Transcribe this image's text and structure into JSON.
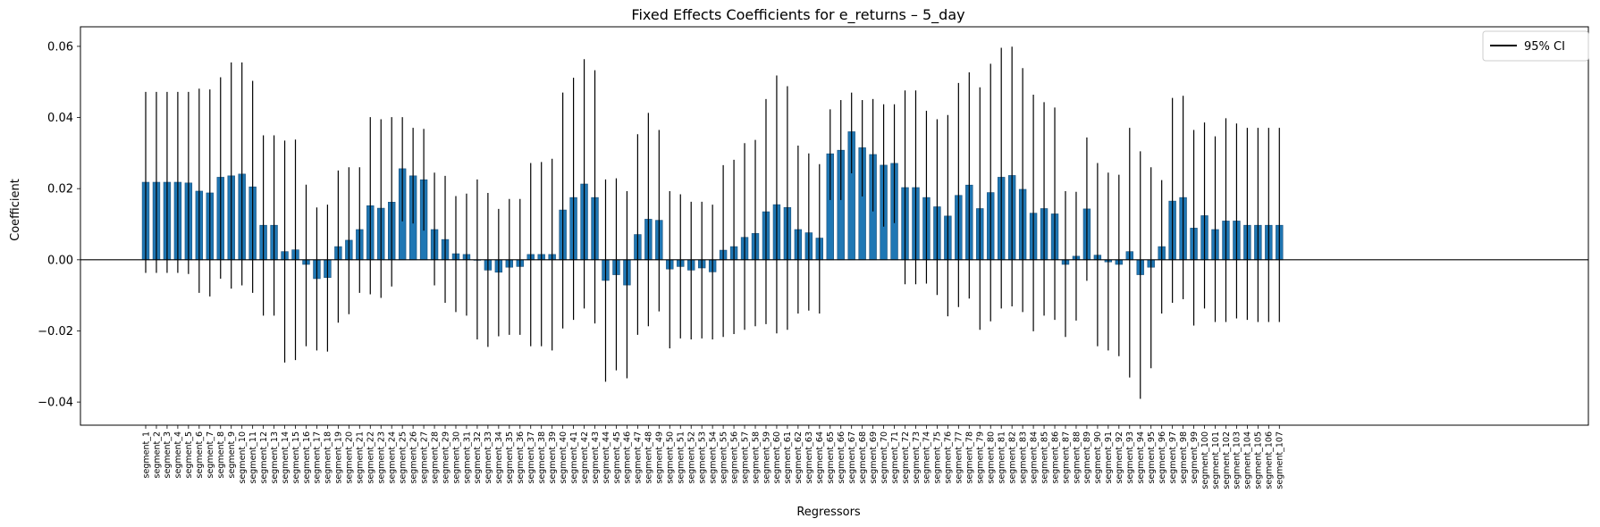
{
  "chart_data": {
    "type": "bar",
    "title": "Fixed Effects Coefficients for e_returns – 5_day",
    "xlabel": "Regressors",
    "ylabel": "Coefficient",
    "ylim": [
      -0.0465,
      0.0655
    ],
    "yticks": [
      -0.04,
      -0.02,
      0.0,
      0.02,
      0.04,
      0.06
    ],
    "ytick_labels": [
      "−0.04",
      "−0.02",
      "0.00",
      "0.02",
      "0.04",
      "0.06"
    ],
    "grid": false,
    "legend": {
      "position": "top-right",
      "entries": [
        "95% CI"
      ]
    },
    "bar_color": "#1f77b4",
    "errorbar_color": "#000000",
    "categories": [
      "segment_1",
      "segment_2",
      "segment_3",
      "segment_4",
      "segment_5",
      "segment_6",
      "segment_7",
      "segment_8",
      "segment_9",
      "segment_10",
      "segment_11",
      "segment_12",
      "segment_13",
      "segment_14",
      "segment_15",
      "segment_16",
      "segment_17",
      "segment_18",
      "segment_19",
      "segment_20",
      "segment_21",
      "segment_22",
      "segment_23",
      "segment_24",
      "segment_25",
      "segment_26",
      "segment_27",
      "segment_28",
      "segment_29",
      "segment_30",
      "segment_31",
      "segment_32",
      "segment_33",
      "segment_34",
      "segment_35",
      "segment_36",
      "segment_37",
      "segment_38",
      "segment_39",
      "segment_40",
      "segment_41",
      "segment_42",
      "segment_43",
      "segment_44",
      "segment_45",
      "segment_46",
      "segment_47",
      "segment_48",
      "segment_49",
      "segment_50",
      "segment_51",
      "segment_52",
      "segment_53",
      "segment_54",
      "segment_55",
      "segment_56",
      "segment_57",
      "segment_58",
      "segment_59",
      "segment_60",
      "segment_61",
      "segment_62",
      "segment_63",
      "segment_64",
      "segment_65",
      "segment_66",
      "segment_67",
      "segment_68",
      "segment_69",
      "segment_70",
      "segment_71",
      "segment_72",
      "segment_73",
      "segment_74",
      "segment_75",
      "segment_76",
      "segment_77",
      "segment_78",
      "segment_79",
      "segment_80",
      "segment_81",
      "segment_82",
      "segment_83",
      "segment_84",
      "segment_85",
      "segment_86",
      "segment_87",
      "segment_88",
      "segment_89",
      "segment_90",
      "segment_91",
      "segment_92",
      "segment_93",
      "segment_94",
      "segment_95",
      "segment_96",
      "segment_97",
      "segment_98",
      "segment_99",
      "segment_100",
      "segment_101",
      "segment_102",
      "segment_103",
      "segment_104",
      "segment_105",
      "segment_106",
      "segment_107"
    ],
    "values": [
      0.0218,
      0.0218,
      0.0218,
      0.0218,
      0.0216,
      0.0193,
      0.0188,
      0.0232,
      0.0236,
      0.0241,
      0.0205,
      0.0097,
      0.0097,
      0.0023,
      0.0028,
      -0.0013,
      -0.0053,
      -0.005,
      0.0037,
      0.0055,
      0.0085,
      0.0152,
      0.0145,
      0.0162,
      0.0256,
      0.0236,
      0.0225,
      0.0085,
      0.0057,
      0.0017,
      0.0015,
      0.0,
      -0.0029,
      -0.0035,
      -0.0021,
      -0.0019,
      0.0015,
      0.0015,
      0.0015,
      0.014,
      0.0175,
      0.0213,
      0.0175,
      -0.0058,
      -0.0042,
      -0.0071,
      0.0071,
      0.0114,
      0.0111,
      -0.0026,
      -0.0019,
      -0.0029,
      -0.0023,
      -0.0034,
      0.0027,
      0.0037,
      0.0063,
      0.0074,
      0.0135,
      0.0155,
      0.0147,
      0.0085,
      0.0076,
      0.0061,
      0.0298,
      0.0308,
      0.036,
      0.0315,
      0.0296,
      0.0266,
      0.0271,
      0.0203,
      0.0203,
      0.0175,
      0.0149,
      0.0123,
      0.0181,
      0.021,
      0.0144,
      0.0189,
      0.0232,
      0.0237,
      0.0198,
      0.0131,
      0.0144,
      0.0129,
      -0.0013,
      0.001,
      0.0143,
      0.0013,
      -0.0006,
      -0.0013,
      0.0023,
      -0.0042,
      -0.0021,
      0.0037,
      0.0165,
      0.0175,
      0.0089,
      0.0124,
      0.0085,
      0.0109,
      0.0109,
      0.0097,
      0.0097,
      0.0097,
      0.0097
    ],
    "ci_lower": [
      -0.0037,
      -0.0037,
      -0.0037,
      -0.0037,
      -0.004,
      -0.0093,
      -0.0103,
      -0.0053,
      -0.0081,
      -0.0072,
      -0.0093,
      -0.0157,
      -0.0157,
      -0.0289,
      -0.0282,
      -0.0243,
      -0.0255,
      -0.0258,
      -0.0177,
      -0.0153,
      -0.0093,
      -0.0097,
      -0.0107,
      -0.0075,
      0.0108,
      0.0102,
      0.0082,
      -0.0072,
      -0.0121,
      -0.0147,
      -0.0157,
      -0.0224,
      -0.0245,
      -0.0215,
      -0.0211,
      -0.0211,
      -0.0243,
      -0.0243,
      -0.0255,
      -0.0193,
      -0.0169,
      -0.0137,
      -0.0179,
      -0.0343,
      -0.0311,
      -0.0333,
      -0.0211,
      -0.0187,
      -0.0145,
      -0.0249,
      -0.0221,
      -0.0224,
      -0.0221,
      -0.0224,
      -0.0217,
      -0.0209,
      -0.0197,
      -0.0187,
      -0.0181,
      -0.0207,
      -0.0197,
      -0.0151,
      -0.0143,
      -0.0151,
      0.0168,
      0.0168,
      0.0243,
      0.0178,
      0.0136,
      0.0093,
      0.0103,
      -0.0069,
      -0.0069,
      -0.0067,
      -0.0099,
      -0.0159,
      -0.0133,
      -0.0109,
      -0.0197,
      -0.0173,
      -0.0137,
      -0.0131,
      -0.0147,
      -0.0201,
      -0.0157,
      -0.0169,
      -0.0217,
      -0.0171,
      -0.0059,
      -0.0243,
      -0.0255,
      -0.0271,
      -0.0331,
      -0.0391,
      -0.0305,
      -0.0151,
      -0.0121,
      -0.0111,
      -0.0185,
      -0.0137,
      -0.0175,
      -0.0175,
      -0.0165,
      -0.0169,
      -0.0175,
      -0.0175,
      -0.0175
    ],
    "ci_upper": [
      0.0472,
      0.0472,
      0.0472,
      0.0472,
      0.0472,
      0.0481,
      0.0479,
      0.0513,
      0.0555,
      0.0555,
      0.0503,
      0.035,
      0.035,
      0.0335,
      0.0338,
      0.0211,
      0.0147,
      0.0155,
      0.0251,
      0.026,
      0.026,
      0.0401,
      0.0395,
      0.0401,
      0.0401,
      0.0371,
      0.0368,
      0.0245,
      0.0236,
      0.0179,
      0.0186,
      0.0226,
      0.0188,
      0.0143,
      0.0171,
      0.0171,
      0.0272,
      0.0275,
      0.0284,
      0.047,
      0.0512,
      0.0564,
      0.0533,
      0.0226,
      0.0229,
      0.0193,
      0.0353,
      0.0413,
      0.0365,
      0.0193,
      0.0184,
      0.0163,
      0.0163,
      0.0155,
      0.0266,
      0.0281,
      0.0328,
      0.0337,
      0.0452,
      0.0518,
      0.0488,
      0.0321,
      0.0299,
      0.0269,
      0.0423,
      0.0449,
      0.047,
      0.0449,
      0.0452,
      0.0437,
      0.0437,
      0.0476,
      0.0476,
      0.0419,
      0.0395,
      0.0407,
      0.0497,
      0.0527,
      0.0485,
      0.0551,
      0.0596,
      0.0599,
      0.0539,
      0.0464,
      0.0443,
      0.0428,
      0.0193,
      0.0191,
      0.0344,
      0.0272,
      0.0245,
      0.0239,
      0.0371,
      0.0305,
      0.026,
      0.0224,
      0.0455,
      0.0461,
      0.0365,
      0.0386,
      0.0347,
      0.0398,
      0.0383,
      0.0371,
      0.0371,
      0.0371,
      0.0371
    ]
  }
}
